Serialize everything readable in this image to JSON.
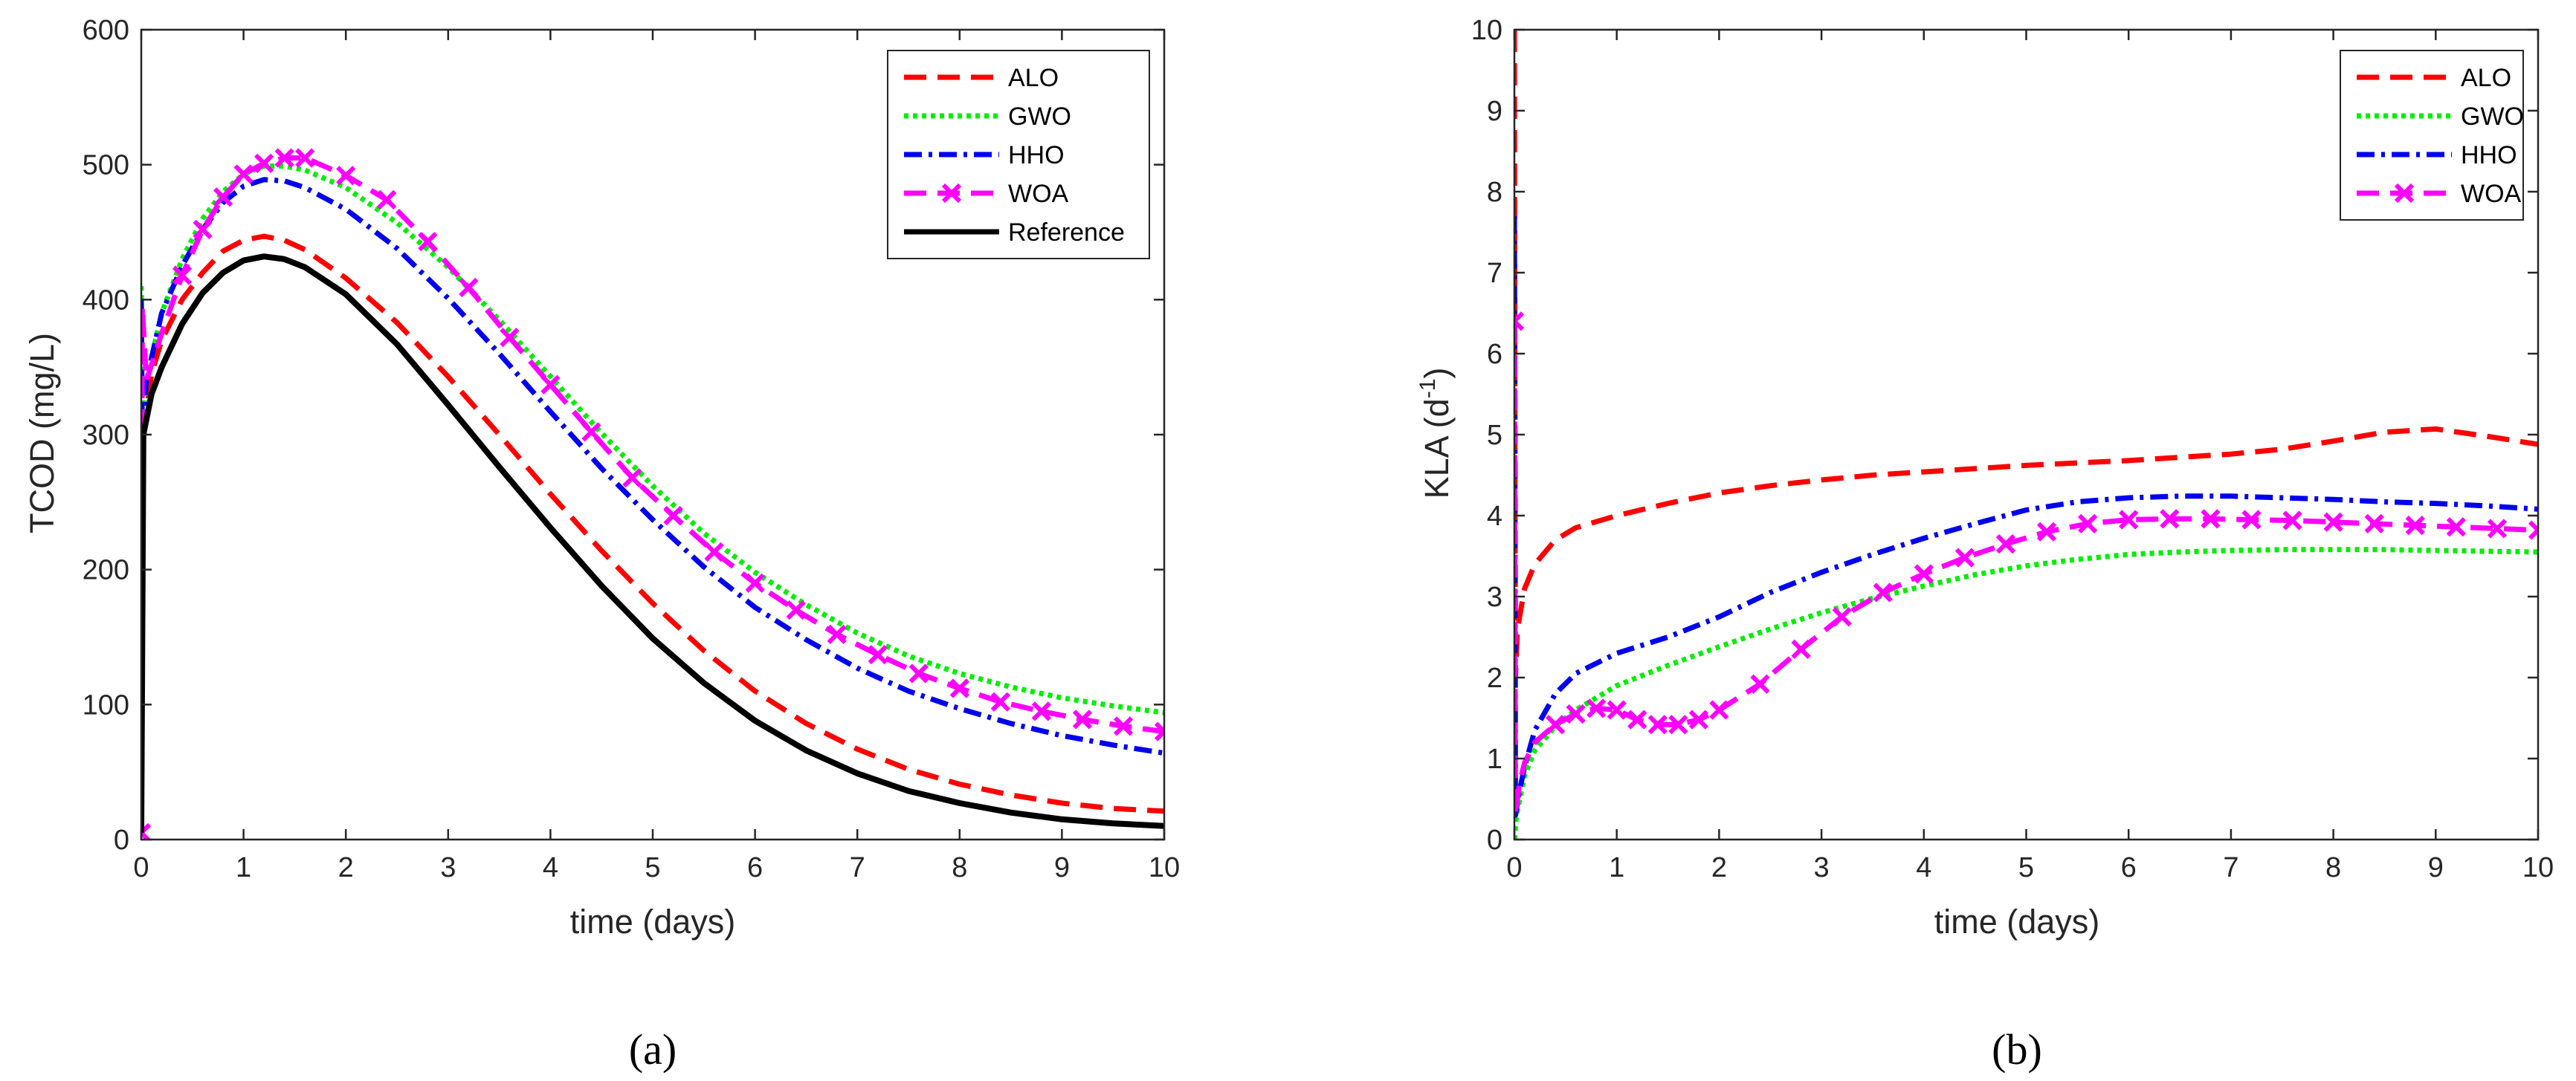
{
  "chart_data": [
    {
      "panel_label": "(a)",
      "type": "line",
      "xlabel": "time (days)",
      "ylabel": "TCOD (mg/L)",
      "xlim": [
        0,
        10
      ],
      "ylim": [
        0,
        600
      ],
      "xticks": [
        0,
        1,
        2,
        3,
        4,
        5,
        6,
        7,
        8,
        9,
        10
      ],
      "yticks": [
        0,
        100,
        200,
        300,
        400,
        500,
        600
      ],
      "legend_position": "top-right",
      "series": [
        {
          "name": "ALO",
          "color": "#ff0000",
          "style": "dashed",
          "marker": "",
          "points": [
            [
              0,
              5
            ],
            [
              0.02,
              300
            ],
            [
              0.1,
              345
            ],
            [
              0.2,
              370
            ],
            [
              0.4,
              400
            ],
            [
              0.6,
              420
            ],
            [
              0.8,
              436
            ],
            [
              1,
              444
            ],
            [
              1.2,
              447
            ],
            [
              1.4,
              444
            ],
            [
              1.6,
              437
            ],
            [
              2,
              416
            ],
            [
              2.5,
              383
            ],
            [
              3,
              343
            ],
            [
              3.5,
              300
            ],
            [
              4,
              256
            ],
            [
              4.5,
              214
            ],
            [
              5,
              175
            ],
            [
              5.5,
              140
            ],
            [
              6,
              110
            ],
            [
              6.5,
              86
            ],
            [
              7,
              67
            ],
            [
              7.5,
              52
            ],
            [
              8,
              41
            ],
            [
              8.5,
              33
            ],
            [
              9,
              27
            ],
            [
              9.5,
              23
            ],
            [
              10,
              21
            ]
          ]
        },
        {
          "name": "GWO",
          "color": "#00ee00",
          "style": "dotted",
          "marker": "",
          "points": [
            [
              0,
              410
            ],
            [
              0.01,
              300
            ],
            [
              0.05,
              340
            ],
            [
              0.2,
              390
            ],
            [
              0.4,
              430
            ],
            [
              0.6,
              460
            ],
            [
              0.8,
              480
            ],
            [
              1,
              493
            ],
            [
              1.2,
              499
            ],
            [
              1.4,
              499
            ],
            [
              1.6,
              496
            ],
            [
              2,
              483
            ],
            [
              2.5,
              457
            ],
            [
              3,
              424
            ],
            [
              3.5,
              385
            ],
            [
              4,
              343
            ],
            [
              4.5,
              301
            ],
            [
              5,
              262
            ],
            [
              5.5,
              227
            ],
            [
              6,
              198
            ],
            [
              6.5,
              174
            ],
            [
              7,
              153
            ],
            [
              7.5,
              136
            ],
            [
              8,
              123
            ],
            [
              8.5,
              113
            ],
            [
              9,
              105
            ],
            [
              9.5,
              99
            ],
            [
              10,
              94
            ]
          ]
        },
        {
          "name": "HHO",
          "color": "#0000ee",
          "style": "dashdot",
          "marker": "",
          "points": [
            [
              0,
              400
            ],
            [
              0.01,
              300
            ],
            [
              0.05,
              340
            ],
            [
              0.2,
              390
            ],
            [
              0.4,
              425
            ],
            [
              0.6,
              452
            ],
            [
              0.8,
              472
            ],
            [
              1,
              484
            ],
            [
              1.2,
              489
            ],
            [
              1.4,
              488
            ],
            [
              1.6,
              483
            ],
            [
              2,
              467
            ],
            [
              2.5,
              438
            ],
            [
              3,
              401
            ],
            [
              3.5,
              360
            ],
            [
              4,
              317
            ],
            [
              4.5,
              275
            ],
            [
              5,
              237
            ],
            [
              5.5,
              202
            ],
            [
              6,
              172
            ],
            [
              6.5,
              148
            ],
            [
              7,
              127
            ],
            [
              7.5,
              110
            ],
            [
              8,
              97
            ],
            [
              8.5,
              86
            ],
            [
              9,
              77
            ],
            [
              9.5,
              70
            ],
            [
              10,
              64
            ]
          ]
        },
        {
          "name": "WOA",
          "color": "#ff00ff",
          "style": "dashed",
          "marker": "x",
          "points": [
            [
              0,
              5
            ],
            [
              0.01,
              395
            ],
            [
              0.05,
              340
            ],
            [
              0.2,
              375
            ],
            [
              0.4,
              418
            ],
            [
              0.6,
              452
            ],
            [
              0.8,
              476
            ],
            [
              1,
              493
            ],
            [
              1.2,
              501
            ],
            [
              1.4,
              505
            ],
            [
              1.6,
              505
            ],
            [
              2,
              492
            ],
            [
              2.4,
              474
            ],
            [
              2.8,
              443
            ],
            [
              3.2,
              409
            ],
            [
              3.6,
              372
            ],
            [
              4,
              337
            ],
            [
              4.4,
              302
            ],
            [
              4.8,
              268
            ],
            [
              5.2,
              240
            ],
            [
              5.6,
              213
            ],
            [
              6,
              190
            ],
            [
              6.4,
              170
            ],
            [
              6.8,
              152
            ],
            [
              7.2,
              137
            ],
            [
              7.6,
              123
            ],
            [
              8,
              112
            ],
            [
              8.4,
              102
            ],
            [
              8.8,
              95
            ],
            [
              9.2,
              89
            ],
            [
              9.6,
              84
            ],
            [
              10,
              80
            ]
          ]
        },
        {
          "name": "Reference",
          "color": "#000000",
          "style": "solid",
          "marker": "",
          "points": [
            [
              0,
              5
            ],
            [
              0.02,
              300
            ],
            [
              0.1,
              330
            ],
            [
              0.2,
              350
            ],
            [
              0.4,
              382
            ],
            [
              0.6,
              405
            ],
            [
              0.8,
              420
            ],
            [
              1,
              429
            ],
            [
              1.2,
              432
            ],
            [
              1.4,
              430
            ],
            [
              1.6,
              424
            ],
            [
              2,
              404
            ],
            [
              2.5,
              367
            ],
            [
              3,
              322
            ],
            [
              3.5,
              276
            ],
            [
              4,
              231
            ],
            [
              4.5,
              188
            ],
            [
              5,
              149
            ],
            [
              5.5,
              116
            ],
            [
              6,
              88
            ],
            [
              6.5,
              66
            ],
            [
              7,
              49
            ],
            [
              7.5,
              36
            ],
            [
              8,
              27
            ],
            [
              8.5,
              20
            ],
            [
              9,
              15
            ],
            [
              9.5,
              12
            ],
            [
              10,
              10
            ]
          ]
        }
      ]
    },
    {
      "panel_label": "(b)",
      "type": "line",
      "xlabel": "time (days)",
      "ylabel_main": "KLA (d",
      "ylabel_sup": "-1",
      "ylabel_end": ")",
      "xlim": [
        0,
        10
      ],
      "ylim": [
        0,
        10
      ],
      "xticks": [
        0,
        1,
        2,
        3,
        4,
        5,
        6,
        7,
        8,
        9,
        10
      ],
      "yticks": [
        0,
        1,
        2,
        3,
        4,
        5,
        6,
        7,
        8,
        9,
        10
      ],
      "legend_position": "top-right",
      "series": [
        {
          "name": "ALO",
          "color": "#ff0000",
          "style": "dashed",
          "marker": "",
          "points": [
            [
              0,
              10
            ],
            [
              0.005,
              5
            ],
            [
              0.01,
              2
            ],
            [
              0.03,
              2.6
            ],
            [
              0.1,
              3.1
            ],
            [
              0.2,
              3.4
            ],
            [
              0.4,
              3.7
            ],
            [
              0.6,
              3.85
            ],
            [
              1,
              4.0
            ],
            [
              1.5,
              4.15
            ],
            [
              2,
              4.28
            ],
            [
              2.5,
              4.37
            ],
            [
              3,
              4.44
            ],
            [
              3.5,
              4.5
            ],
            [
              4,
              4.54
            ],
            [
              4.5,
              4.58
            ],
            [
              5,
              4.62
            ],
            [
              5.5,
              4.65
            ],
            [
              6,
              4.68
            ],
            [
              6.5,
              4.72
            ],
            [
              7,
              4.76
            ],
            [
              7.5,
              4.82
            ],
            [
              8,
              4.92
            ],
            [
              8.5,
              5.03
            ],
            [
              9,
              5.07
            ],
            [
              9.5,
              4.98
            ],
            [
              10,
              4.88
            ]
          ]
        },
        {
          "name": "GWO",
          "color": "#00ee00",
          "style": "dotted",
          "marker": "",
          "points": [
            [
              0,
              0
            ],
            [
              0.02,
              0.3
            ],
            [
              0.1,
              0.8
            ],
            [
              0.2,
              1.1
            ],
            [
              0.4,
              1.4
            ],
            [
              0.6,
              1.6
            ],
            [
              0.8,
              1.75
            ],
            [
              1,
              1.9
            ],
            [
              1.5,
              2.15
            ],
            [
              2,
              2.38
            ],
            [
              2.5,
              2.6
            ],
            [
              3,
              2.8
            ],
            [
              3.5,
              2.98
            ],
            [
              4,
              3.13
            ],
            [
              4.5,
              3.27
            ],
            [
              5,
              3.38
            ],
            [
              5.5,
              3.46
            ],
            [
              6,
              3.52
            ],
            [
              6.5,
              3.55
            ],
            [
              7,
              3.57
            ],
            [
              7.5,
              3.58
            ],
            [
              8,
              3.58
            ],
            [
              8.5,
              3.58
            ],
            [
              9,
              3.57
            ],
            [
              9.5,
              3.56
            ],
            [
              10,
              3.55
            ]
          ]
        },
        {
          "name": "HHO",
          "color": "#0000ee",
          "style": "dashdot",
          "marker": "",
          "points": [
            [
              0,
              7.7
            ],
            [
              0.005,
              5
            ],
            [
              0.01,
              0.3
            ],
            [
              0.05,
              0.6
            ],
            [
              0.1,
              0.9
            ],
            [
              0.2,
              1.35
            ],
            [
              0.4,
              1.8
            ],
            [
              0.6,
              2.05
            ],
            [
              1,
              2.3
            ],
            [
              1.5,
              2.5
            ],
            [
              2,
              2.75
            ],
            [
              2.5,
              3.05
            ],
            [
              3,
              3.3
            ],
            [
              3.5,
              3.52
            ],
            [
              4,
              3.72
            ],
            [
              4.5,
              3.9
            ],
            [
              5,
              4.07
            ],
            [
              5.5,
              4.17
            ],
            [
              6,
              4.22
            ],
            [
              6.5,
              4.24
            ],
            [
              7,
              4.24
            ],
            [
              7.5,
              4.22
            ],
            [
              8,
              4.2
            ],
            [
              8.5,
              4.17
            ],
            [
              9,
              4.15
            ],
            [
              9.5,
              4.12
            ],
            [
              10,
              4.08
            ]
          ]
        },
        {
          "name": "WOA",
          "color": "#ff00ff",
          "style": "dashed",
          "marker": "x",
          "points": [
            [
              0,
              6.4
            ],
            [
              0.005,
              3
            ],
            [
              0.01,
              0.3
            ],
            [
              0.05,
              0.7
            ],
            [
              0.1,
              0.95
            ],
            [
              0.2,
              1.2
            ],
            [
              0.4,
              1.42
            ],
            [
              0.6,
              1.55
            ],
            [
              0.8,
              1.62
            ],
            [
              1,
              1.6
            ],
            [
              1.2,
              1.48
            ],
            [
              1.4,
              1.42
            ],
            [
              1.6,
              1.42
            ],
            [
              1.8,
              1.48
            ],
            [
              2,
              1.6
            ],
            [
              2.4,
              1.92
            ],
            [
              2.8,
              2.35
            ],
            [
              3.2,
              2.75
            ],
            [
              3.6,
              3.05
            ],
            [
              4,
              3.28
            ],
            [
              4.4,
              3.48
            ],
            [
              4.8,
              3.65
            ],
            [
              5.2,
              3.8
            ],
            [
              5.6,
              3.9
            ],
            [
              6,
              3.95
            ],
            [
              6.4,
              3.96
            ],
            [
              6.8,
              3.96
            ],
            [
              7.2,
              3.95
            ],
            [
              7.6,
              3.94
            ],
            [
              8,
              3.92
            ],
            [
              8.4,
              3.9
            ],
            [
              8.8,
              3.88
            ],
            [
              9.2,
              3.86
            ],
            [
              9.6,
              3.84
            ],
            [
              10,
              3.82
            ]
          ]
        }
      ]
    }
  ]
}
